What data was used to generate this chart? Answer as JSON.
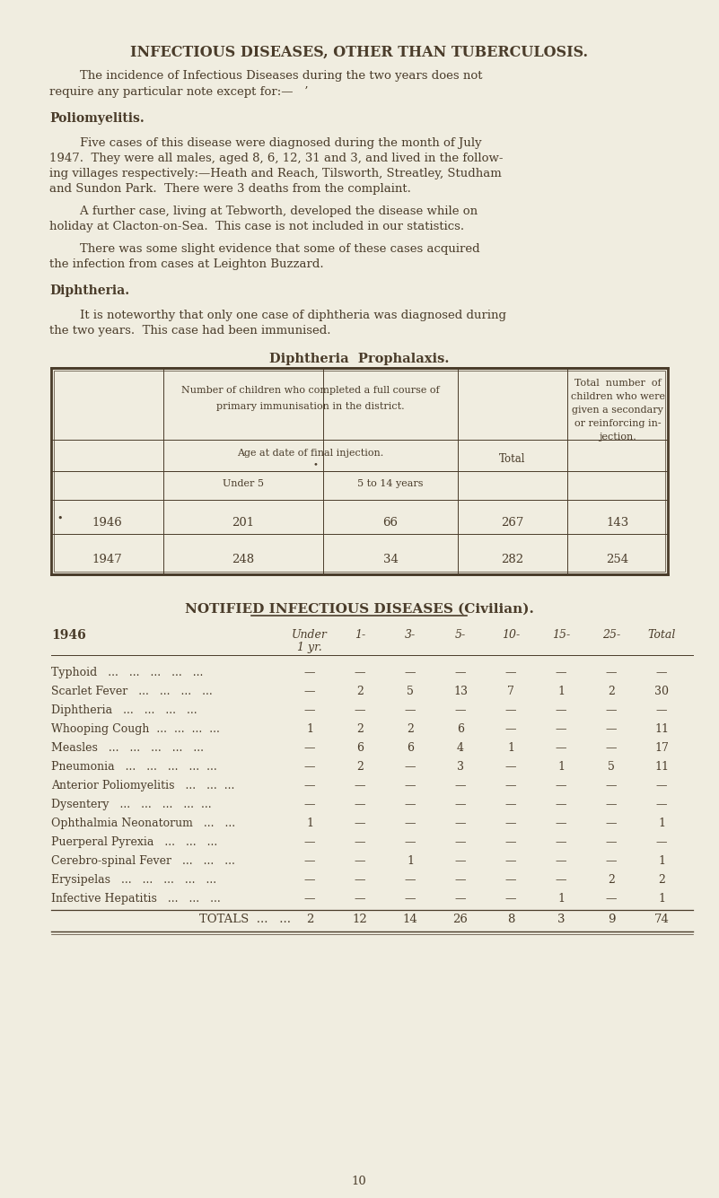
{
  "bg_color": "#f0ede0",
  "text_color": "#4a3c2a",
  "title": "INFECTIOUS DISEASES, OTHER THAN TUBERCULOSIS.",
  "para1_indent": "        The incidence of Infectious Diseases during the two years does not",
  "para1_cont": "require any particular note except for:—   ’",
  "section1_title": "Poliomyelitis.",
  "para2_indent": "        Five cases of this disease were diagnosed during the month of July",
  "para2_l2": "1947.  They were all males, aged 8, 6, 12, 31 and 3, and lived in the follow-",
  "para2_l3": "ing villages respectively:—Heath and Reach, Tilsworth, Streatley, Studham",
  "para2_l4": "and Sundon Park.  There were 3 deaths from the complaint.",
  "para3_indent": "        A further case, living at Tebworth, developed the disease while on",
  "para3_cont": "holiday at Clacton-on-Sea.  This case is not included in our statistics.",
  "para4_indent": "        There was some slight evidence that some of these cases acquired",
  "para4_cont": "the infection from cases at Leighton Buzzard.",
  "section2_title": "Diphtheria.",
  "para5_indent": "        It is noteworthy that only one case of diphtheria was diagnosed during",
  "para5_cont": "the two years.  This case had been immunised.",
  "table1_title": "Diphtheria  Prophalaxis.",
  "table1_col1_header_l1": "Number of children who completed a full course of",
  "table1_col1_header_l2": "primary immunisation in the district.",
  "table1_col2_header_l1": "Total  number  of",
  "table1_col2_header_l2": "children who were",
  "table1_col2_header_l3": "given a secondary",
  "table1_col2_header_l4": "or reinforcing in-",
  "table1_col2_header_l5": "jection.",
  "table1_subheader1": "Age at date of final injection.",
  "table1_subheader2": "Total",
  "table1_sub1": "Under 5",
  "table1_sub2": "5 to 14 years",
  "table1_data": [
    {
      "year": "1946",
      "under5": "201",
      "5to14": "66",
      "total": "267",
      "secondary": "143"
    },
    {
      "year": "1947",
      "under5": "248",
      "5to14": "34",
      "total": "282",
      "secondary": "254"
    }
  ],
  "table2_title": "NOTIFIED INFECTIOUS DISEASES (Civilian).",
  "table2_year": "1946",
  "table2_col_headers": [
    "Under",
    "1-",
    "3-",
    "5-",
    "10-",
    "15-",
    "25-",
    "Total"
  ],
  "table2_col_sub": [
    "1 yr.",
    "",
    "",
    "",
    "",
    "",
    "",
    ""
  ],
  "table2_rows": [
    {
      "disease": "Typhoid   ...   ...   ...   ...   ...",
      "values": [
        "—",
        "—",
        "—",
        "—",
        "—",
        "—",
        "—",
        "—"
      ]
    },
    {
      "disease": "Scarlet Fever   ...   ...   ...   ...",
      "values": [
        "—",
        "2",
        "5",
        "13",
        "7",
        "1",
        "2",
        "30"
      ]
    },
    {
      "disease": "Diphtheria   ...   ...   ...   ...",
      "values": [
        "—",
        "—",
        "—",
        "—",
        "—",
        "—",
        "—",
        "—"
      ]
    },
    {
      "disease": "Whooping Cough  ...  ...  ...  ...",
      "values": [
        "1",
        "2",
        "2",
        "6",
        "—",
        "—",
        "—",
        "11"
      ]
    },
    {
      "disease": "Measles   ...   ...   ...   ...   ...",
      "values": [
        "—",
        "6",
        "6",
        "4",
        "1",
        "—",
        "—",
        "17"
      ]
    },
    {
      "disease": "Pneumonia   ...   ...   ...   ...  ...",
      "values": [
        "—",
        "2",
        "—",
        "3",
        "—",
        "1",
        "5",
        "11"
      ]
    },
    {
      "disease": "Anterior Poliomyelitis   ...   ...  ...",
      "values": [
        "—",
        "—",
        "—",
        "—",
        "—",
        "—",
        "—",
        "—"
      ]
    },
    {
      "disease": "Dysentery   ...   ...   ...   ...  ...",
      "values": [
        "—",
        "—",
        "—",
        "—",
        "—",
        "—",
        "—",
        "—"
      ]
    },
    {
      "disease": "Ophthalmia Neonatorum   ...   ...",
      "values": [
        "1",
        "—",
        "—",
        "—",
        "—",
        "—",
        "—",
        "1"
      ]
    },
    {
      "disease": "Puerperal Pyrexia   ...   ...   ...",
      "values": [
        "—",
        "—",
        "—",
        "—",
        "—",
        "—",
        "—",
        "—"
      ]
    },
    {
      "disease": "Cerebro-spinal Fever   ...   ...   ...",
      "values": [
        "—",
        "—",
        "1",
        "—",
        "—",
        "—",
        "—",
        "1"
      ]
    },
    {
      "disease": "Erysipelas   ...   ...   ...   ...   ...",
      "values": [
        "—",
        "—",
        "—",
        "—",
        "—",
        "—",
        "2",
        "2"
      ]
    },
    {
      "disease": "Infective Hepatitis   ...   ...   ...",
      "values": [
        "—",
        "—",
        "—",
        "—",
        "—",
        "1",
        "—",
        "1"
      ]
    }
  ],
  "table2_totals": [
    "2",
    "12",
    "14",
    "26",
    "8",
    "3",
    "9",
    "74"
  ],
  "page_number": "10"
}
